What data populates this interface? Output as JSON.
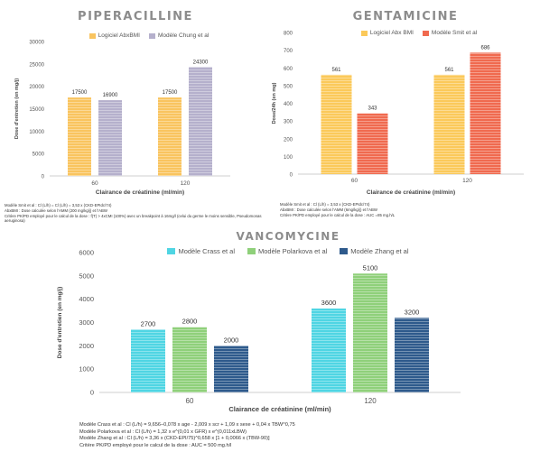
{
  "charts": {
    "piperacilline": {
      "title": "PIPERACILLINE",
      "ylabel": "Dose d'entretien (en mg/j)",
      "xlabel": "Clairance de créatinine (ml/min)",
      "legend": [
        "Logiciel AbxBMI",
        "Modèle Chung et al"
      ],
      "notes": [
        "Modèle Smit et al : Cl (L/h) = Cl (L/h) = 3,53 x (CKD-EPIdc/74)",
        "AbxBMI : Dose calculée selon l'AMM (200 mg/kg/j) et l'ABW",
        "Critère PK/PD employé pour le calcul de la dose : f(T) > 4xCMI (100%) avec un breakpoint à 16mg/l (celui du germe le moins sensible, Pseudomonas aeruginosa)"
      ]
    },
    "gentamicine": {
      "title": "GENTAMICINE",
      "ylabel": "Dose/24h (en mg)",
      "xlabel": "Clairance de créatinine (ml/min)",
      "legend": [
        "Logiciel Abx BMI",
        "Modèle Smit et al"
      ],
      "notes": [
        "Modèle Smit et al : Cl (L/h) = 3,53 x (CKD-EPIdc/74)",
        "AbxBMI : Dose calculée selon l'AMM (6mg/kg/j) et l'ABW",
        "Critère PK/PD employé pour le calcul de la dose : AUC =85 mg.h/L"
      ]
    },
    "vancomycine": {
      "title": "VANCOMYCINE",
      "ylabel": "Dose d'entretien (en mg/j)",
      "xlabel": "Clairance de créatinine (ml/min)",
      "legend": [
        "Modèle Crass et al",
        "Modèle Polarkova et al",
        "Modèle Zhang et al"
      ],
      "notes": [
        "Modèle Crass et al : Cl (L/h) = 9,656–0,078 x age - 2,009 x scr + 1,09 x sexe + 0,04 x TBW^0,75",
        "Modèle Polarkova et al : Cl (L/h) = 1,32 x e^(0,01 x GFR) x e^(0,011xLBW)",
        "Modèle Zhang et al : Cl (L/h) = 3,36 x (CKD-EPI/75)^0,658 x [1 + 0,0066 x (TBW-90)]",
        "Critère PK/PD employé pour le calcul de la dose : AUC = 500 mg.h/l"
      ]
    }
  },
  "chart_data": [
    {
      "type": "bar",
      "title": "PIPERACILLINE",
      "categories": [
        "60",
        "120"
      ],
      "series": [
        {
          "name": "Logiciel AbxBMI",
          "values": [
            17500,
            17500
          ],
          "color": "#f9c45f"
        },
        {
          "name": "Modèle Chung et al",
          "values": [
            16900,
            24300
          ],
          "color": "#b5b0cc"
        }
      ],
      "xlabel": "Clairance de créatinine (ml/min)",
      "ylabel": "Dose d'entretien (en mg/j)",
      "ylim": [
        0,
        30000
      ],
      "yticks": [
        "0",
        "5000",
        "10000",
        "15000",
        "20000",
        "25000",
        "30000"
      ],
      "legend_position": "top",
      "grid": false
    },
    {
      "type": "bar",
      "title": "GENTAMICINE",
      "categories": [
        "60",
        "120"
      ],
      "series": [
        {
          "name": "Logiciel Abx BMI",
          "values": [
            561,
            561
          ],
          "color": "#fbc95a"
        },
        {
          "name": "Modèle Smit et al",
          "values": [
            343,
            686
          ],
          "color": "#f06a4f"
        }
      ],
      "xlabel": "Clairance de créatinine (ml/min)",
      "ylabel": "Dose/24h (en mg)",
      "ylim": [
        0,
        800
      ],
      "yticks": [
        "0",
        "100",
        "200",
        "300",
        "400",
        "500",
        "600",
        "700",
        "800"
      ],
      "legend_position": "top",
      "grid": false
    },
    {
      "type": "bar",
      "title": "VANCOMYCINE",
      "categories": [
        "60",
        "120"
      ],
      "series": [
        {
          "name": "Modèle Crass et al",
          "values": [
            2700,
            3600
          ],
          "color": "#4fd5e3"
        },
        {
          "name": "Modèle Polarkova et al",
          "values": [
            2800,
            5100
          ],
          "color": "#8fd07a"
        },
        {
          "name": "Modèle Zhang et al",
          "values": [
            2000,
            3200
          ],
          "color": "#2e5a8c"
        }
      ],
      "xlabel": "Clairance de créatinine (ml/min)",
      "ylabel": "Dose d'entretien (en mg/j)",
      "ylim": [
        0,
        6000
      ],
      "yticks": [
        "0",
        "1000",
        "2000",
        "3000",
        "4000",
        "5000",
        "6000"
      ],
      "legend_position": "top",
      "grid": false
    }
  ]
}
